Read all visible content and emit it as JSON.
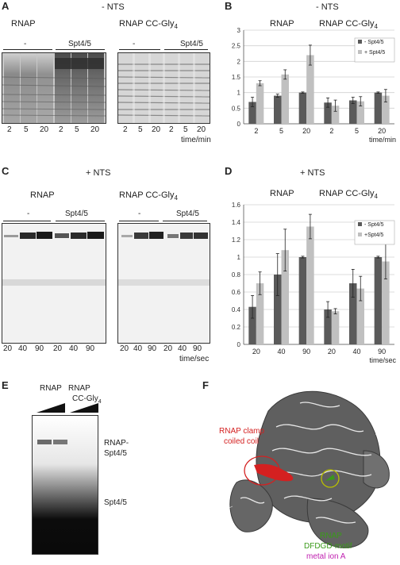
{
  "panels": {
    "A": {
      "letter": "A",
      "condition": "- NTS",
      "gel_left_title": "RNAP",
      "gel_right_title": "RNAP CC-Gly",
      "gel_right_sub": "4",
      "group_minus": "-",
      "group_spt": "Spt4/5",
      "lane_labels": [
        "2",
        "5",
        "20",
        "2",
        "5",
        "20"
      ],
      "axis_unit": "time/min"
    },
    "B": {
      "letter": "B",
      "condition": "- NTS",
      "group_labels": [
        "RNAP",
        "RNAP CC-Gly"
      ],
      "group_sub": "4"
    },
    "C": {
      "letter": "C",
      "condition": "+ NTS",
      "gel_left_title": "RNAP",
      "gel_right_title": "RNAP CC-Gly",
      "gel_right_sub": "4",
      "group_minus": "-",
      "group_spt": "Spt4/5",
      "lane_labels": [
        "20",
        "40",
        "90",
        "20",
        "40",
        "90"
      ],
      "axis_unit": "time/sec"
    },
    "D": {
      "letter": "D",
      "condition": "+ NTS",
      "group_labels": [
        "RNAP",
        "RNAP CC-Gly"
      ],
      "group_sub": "4"
    },
    "E": {
      "letter": "E",
      "col1": "RNAP",
      "col2_line1": "RNAP",
      "col2_line2": "CC-Gly",
      "col2_sub": "4",
      "band_upper_1": "RNAP-",
      "band_upper_2": "Spt4/5",
      "band_lower": "Spt4/5"
    },
    "F": {
      "letter": "F",
      "label_clamp_1": "RNAP clamp",
      "label_clamp_2": "coiled coil",
      "label_motif_1": "RNAP",
      "label_motif_2": "DFDGD-motif",
      "label_metal": "metal ion A",
      "color_clamp": "#d42020",
      "color_motif": "#3a9a1a",
      "color_metal": "#c020b0"
    }
  },
  "chart_data": [
    {
      "panel": "B",
      "type": "bar",
      "categories": [
        "2",
        "5",
        "20",
        "2",
        "5",
        "20"
      ],
      "xlabel": "time/min",
      "ylim": [
        0,
        3
      ],
      "yticks": [
        "0",
        "0.5",
        "1",
        "1.5",
        "2",
        "2.5",
        "3"
      ],
      "series": [
        {
          "name": "- Spt4/5",
          "color": "#5a5a5a",
          "values": [
            0.7,
            0.9,
            1.0,
            0.68,
            0.75,
            1.0
          ],
          "errors": [
            0.15,
            0.05,
            0.02,
            0.15,
            0.1,
            0.02
          ]
        },
        {
          "name": "+ Spt4/5",
          "color": "#c0c0c0",
          "values": [
            1.3,
            1.58,
            2.2,
            0.58,
            0.72,
            0.9
          ],
          "errors": [
            0.08,
            0.15,
            0.32,
            0.18,
            0.15,
            0.2
          ]
        }
      ],
      "legend_position": "top-right",
      "grid": true
    },
    {
      "panel": "D",
      "type": "bar",
      "categories": [
        "20",
        "40",
        "90",
        "20",
        "40",
        "90"
      ],
      "xlabel": "time/sec",
      "ylim": [
        0,
        1.6
      ],
      "yticks": [
        "0",
        "0.2",
        "0.4",
        "0.6",
        "0.8",
        "1",
        "1.2",
        "1.4",
        "1.6"
      ],
      "series": [
        {
          "name": "- Spt4/5",
          "color": "#5a5a5a",
          "values": [
            0.43,
            0.8,
            1.0,
            0.4,
            0.7,
            1.0
          ],
          "errors": [
            0.13,
            0.24,
            0.01,
            0.09,
            0.16,
            0.01
          ]
        },
        {
          "name": "+Spt4/5",
          "color": "#c0c0c0",
          "values": [
            0.7,
            1.08,
            1.35,
            0.38,
            0.64,
            0.95
          ],
          "errors": [
            0.13,
            0.24,
            0.14,
            0.03,
            0.14,
            0.2
          ]
        }
      ],
      "legend_position": "top-right",
      "grid": true
    }
  ]
}
